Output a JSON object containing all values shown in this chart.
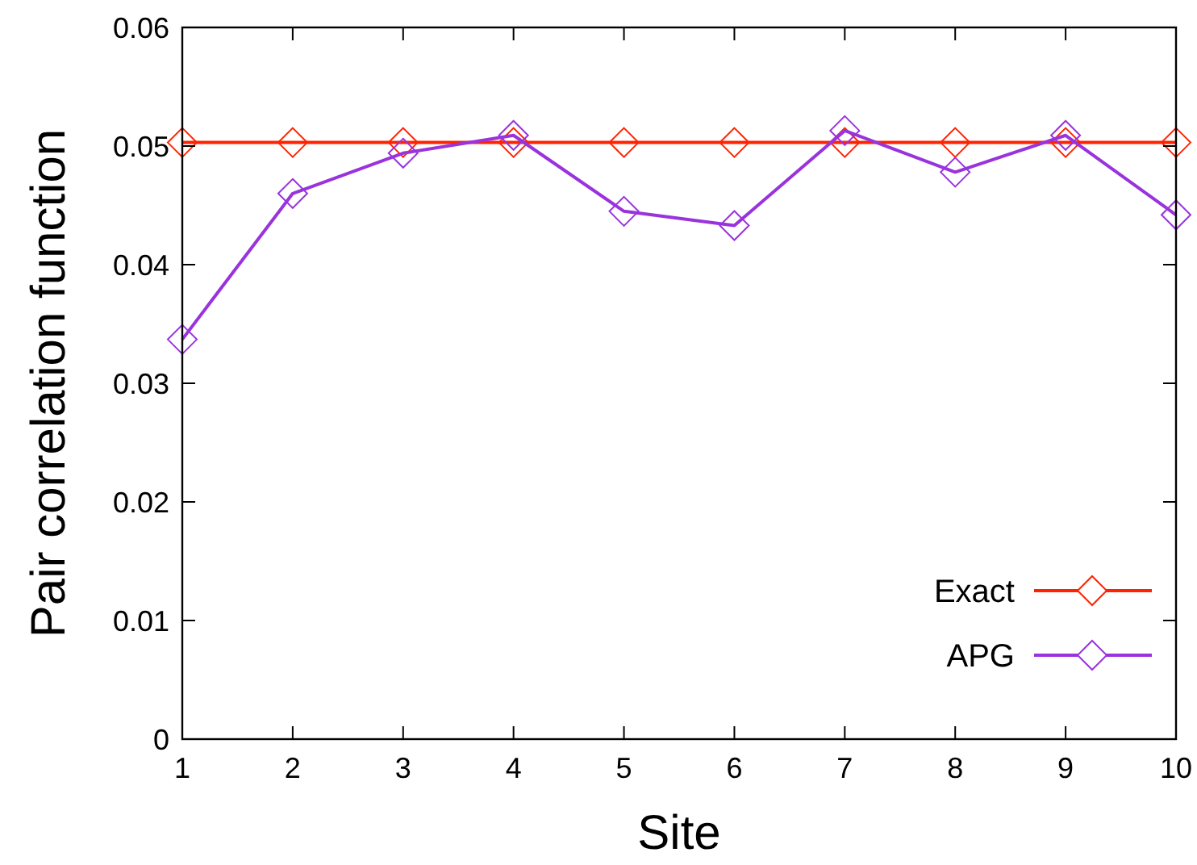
{
  "chart_data": {
    "type": "line",
    "xlabel": "Site",
    "ylabel": "Pair correlation function",
    "x": [
      1,
      2,
      3,
      4,
      5,
      6,
      7,
      8,
      9,
      10
    ],
    "series": [
      {
        "name": "Exact",
        "color": "#ff2200",
        "values": [
          0.0503,
          0.0503,
          0.0503,
          0.0503,
          0.0503,
          0.0503,
          0.0503,
          0.0503,
          0.0503,
          0.0503
        ]
      },
      {
        "name": "APG",
        "color": "#9933dd",
        "values": [
          0.0337,
          0.046,
          0.0494,
          0.0509,
          0.0445,
          0.0433,
          0.0513,
          0.0478,
          0.0509,
          0.0442
        ]
      }
    ],
    "xlim": [
      1,
      10
    ],
    "xticks": [
      1,
      2,
      3,
      4,
      5,
      6,
      7,
      8,
      9,
      10
    ],
    "ylim": [
      0,
      0.06
    ],
    "yticks": [
      {
        "value": 0,
        "label": "0"
      },
      {
        "value": 0.01,
        "label": "0.01"
      },
      {
        "value": 0.02,
        "label": "0.02"
      },
      {
        "value": 0.03,
        "label": "0.03"
      },
      {
        "value": 0.04,
        "label": "0.04"
      },
      {
        "value": 0.05,
        "label": "0.05"
      },
      {
        "value": 0.06,
        "label": "0.06"
      }
    ],
    "grid": false,
    "legend": "bottom right",
    "marker": "diamond",
    "line_style": "solid"
  }
}
